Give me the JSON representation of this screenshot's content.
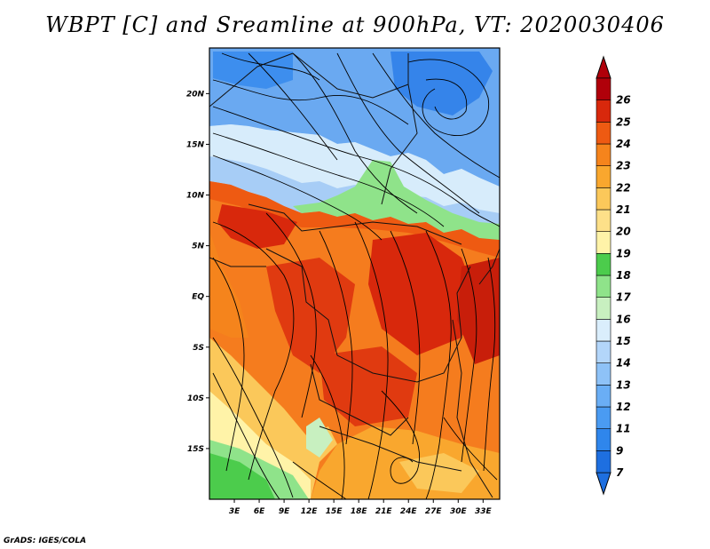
{
  "title": "WBPT [C] and Sreamline at 900hPa, VT: 2020030406",
  "credit": "GrADS: IGES/COLA",
  "map": {
    "lat_labels": [
      "20N",
      "15N",
      "10N",
      "5N",
      "EQ",
      "5S",
      "10S",
      "15S"
    ],
    "lat_values": [
      20,
      15,
      10,
      5,
      0,
      -5,
      -10,
      -15
    ],
    "lon_labels": [
      "3E",
      "6E",
      "9E",
      "12E",
      "15E",
      "18E",
      "21E",
      "24E",
      "27E",
      "30E",
      "33E"
    ],
    "lon_values": [
      3,
      6,
      9,
      12,
      15,
      18,
      21,
      24,
      27,
      30,
      33
    ],
    "lat_range": [
      -20,
      24.5
    ],
    "lon_range": [
      0,
      35
    ]
  },
  "colorbar": {
    "labels": [
      "7",
      "9",
      "11",
      "12",
      "13",
      "14",
      "15",
      "16",
      "17",
      "18",
      "19",
      "20",
      "21",
      "22",
      "23",
      "24",
      "25",
      "26"
    ],
    "colors": [
      "#1e6fe0",
      "#2f86ec",
      "#4a9bf2",
      "#6aaef5",
      "#8ec2f7",
      "#b3d6fa",
      "#daeefc",
      "#c8f0c0",
      "#8fe38a",
      "#4ccc4c",
      "#fff3a8",
      "#fde089",
      "#fbc85a",
      "#f9a72e",
      "#f5841c",
      "#ee5a12",
      "#d8280c",
      "#b0000a"
    ]
  }
}
